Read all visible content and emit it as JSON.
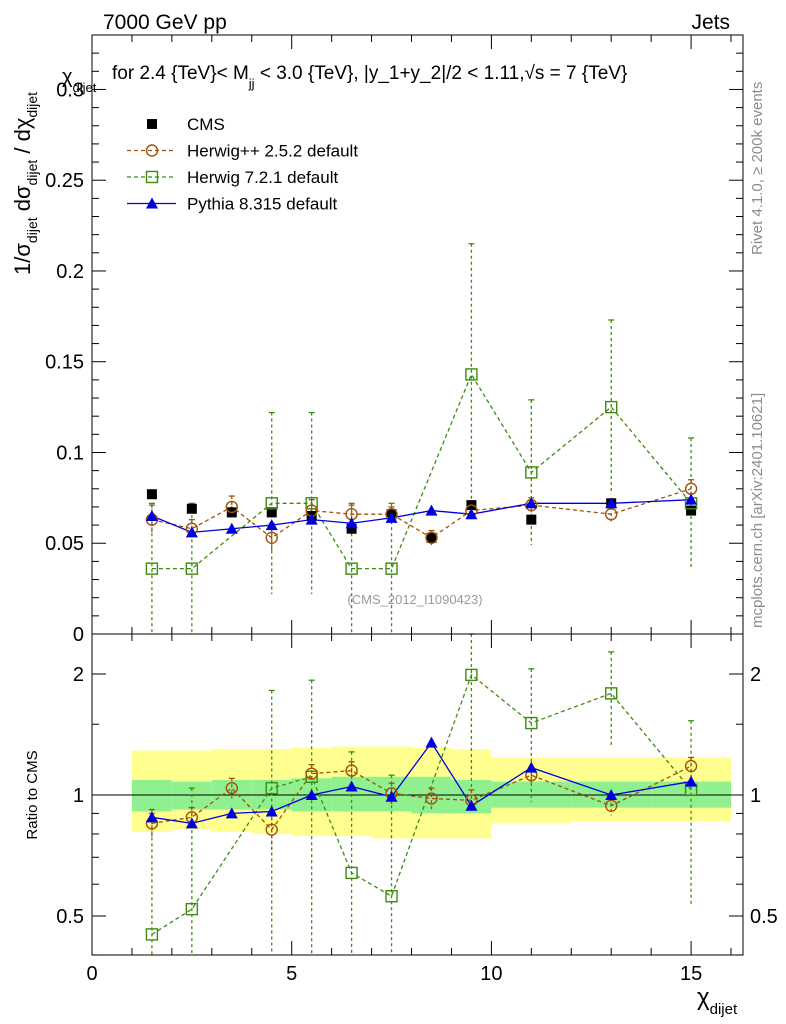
{
  "header": {
    "left": "7000 GeV pp",
    "right": "Jets"
  },
  "side_labels": {
    "rivet": "Rivet 4.1.0, ≥ 200k events",
    "mcplots": "mcplots.cern.ch [arXiv:2401.10621]"
  },
  "watermark": "(CMS_2012_I1090423)",
  "colors": {
    "cms": "#000000",
    "herwigpp": "#a0520a",
    "herwig7": "#3d8c0f",
    "pythia": "#0000dd",
    "band_inner": "#90f090",
    "band_outer": "#ffff90"
  },
  "chart_data": [
    {
      "type": "scatter",
      "panel": "main",
      "title": "χdijet for 2.4 {TeV}< Mjj < 3.0 {TeV}, |y_1+y_2|/2 < 1.11,√s = 7 {TeV}",
      "ylabel": "1/σdijet dσdijet / dχdijet",
      "xlabel": "χdijet",
      "xlim": [
        0,
        16.3
      ],
      "ylim": [
        0,
        0.33
      ],
      "yticks": [
        0,
        0.05,
        0.1,
        0.15,
        0.2,
        0.25,
        0.3
      ],
      "ytick_labels": [
        "0",
        "0.05",
        "0.1",
        "0.15",
        "0.2",
        "0.25",
        "0.3"
      ],
      "legend": [
        "CMS",
        "Herwig++ 2.5.2 default",
        "Herwig 7.2.1 default",
        "Pythia 8.315 default"
      ],
      "series": [
        {
          "name": "CMS",
          "x": [
            1.5,
            2.5,
            3.5,
            4.5,
            5.5,
            6.5,
            7.5,
            8.5,
            9.5,
            11,
            13,
            15
          ],
          "values": [
            0.077,
            0.069,
            0.067,
            0.067,
            0.065,
            0.058,
            0.066,
            0.053,
            0.071,
            0.063,
            0.072,
            0.068
          ]
        },
        {
          "name": "Herwig++ 2.5.2 default",
          "x": [
            1.5,
            2.5,
            3.5,
            4.5,
            5.5,
            6.5,
            7.5,
            8.5,
            9.5,
            11,
            13,
            15
          ],
          "values": [
            0.063,
            0.058,
            0.07,
            0.053,
            0.068,
            0.066,
            0.066,
            0.053,
            0.068,
            0.071,
            0.066,
            0.08
          ],
          "errors": [
            0.008,
            0.005,
            0.006,
            0.008,
            0.006,
            0.005,
            0.004,
            0.004,
            0.005,
            0.004,
            0.004,
            0.005
          ]
        },
        {
          "name": "Herwig 7.2.1 default",
          "x": [
            1.5,
            2.5,
            3.5,
            4.5,
            5.5,
            6.5,
            7.5,
            8.5,
            9.5,
            11,
            13,
            15
          ],
          "values": [
            0.036,
            0.036,
            null,
            0.072,
            0.072,
            0.036,
            0.036,
            null,
            0.143,
            0.089,
            0.125,
            0.072
          ],
          "errors": [
            0.036,
            0.036,
            null,
            0.05,
            0.05,
            0.036,
            0.036,
            null,
            0.072,
            0.04,
            0.048,
            0.036
          ]
        },
        {
          "name": "Pythia 8.315 default",
          "x": [
            1.5,
            2.5,
            3.5,
            4.5,
            5.5,
            6.5,
            7.5,
            8.5,
            9.5,
            11,
            13,
            15
          ],
          "values": [
            0.065,
            0.056,
            0.058,
            0.06,
            0.063,
            0.061,
            0.064,
            0.068,
            0.066,
            0.072,
            0.072,
            0.074
          ]
        }
      ]
    },
    {
      "type": "scatter",
      "panel": "ratio",
      "ylabel": "Ratio to CMS",
      "xlabel": "χdijet",
      "xlim": [
        0,
        16.3
      ],
      "ylim": [
        0.33,
        2.5
      ],
      "yticks": [
        0.5,
        1,
        2
      ],
      "ytick_labels": [
        "0.5",
        "1",
        "2"
      ],
      "xticks": [
        0,
        5,
        10,
        15
      ],
      "xtick_labels": [
        "0",
        "5",
        "10",
        "15"
      ],
      "bins": [
        [
          1,
          2
        ],
        [
          2,
          3
        ],
        [
          3,
          4
        ],
        [
          4,
          5
        ],
        [
          5,
          6
        ],
        [
          6,
          7
        ],
        [
          7,
          8
        ],
        [
          8,
          9
        ],
        [
          9,
          10
        ],
        [
          10,
          12
        ],
        [
          12,
          14
        ],
        [
          14,
          16
        ]
      ],
      "band_inner": [
        [
          0.91,
          1.09
        ],
        [
          0.92,
          1.08
        ],
        [
          0.92,
          1.09
        ],
        [
          0.92,
          1.09
        ],
        [
          0.91,
          1.1
        ],
        [
          0.91,
          1.11
        ],
        [
          0.91,
          1.11
        ],
        [
          0.9,
          1.11
        ],
        [
          0.9,
          1.09
        ],
        [
          0.93,
          1.08
        ],
        [
          0.93,
          1.08
        ],
        [
          0.93,
          1.08
        ]
      ],
      "band_outer": [
        [
          0.81,
          1.29
        ],
        [
          0.82,
          1.29
        ],
        [
          0.81,
          1.3
        ],
        [
          0.8,
          1.3
        ],
        [
          0.79,
          1.31
        ],
        [
          0.79,
          1.32
        ],
        [
          0.78,
          1.32
        ],
        [
          0.78,
          1.31
        ],
        [
          0.78,
          1.3
        ],
        [
          0.85,
          1.24
        ],
        [
          0.86,
          1.24
        ],
        [
          0.86,
          1.24
        ]
      ],
      "series": [
        {
          "name": "Herwig++ 2.5.2 default",
          "x": [
            1.5,
            2.5,
            3.5,
            4.5,
            5.5,
            6.5,
            7.5,
            8.5,
            9.5,
            11,
            13,
            15
          ],
          "values": [
            0.85,
            0.88,
            1.04,
            0.82,
            1.13,
            1.15,
            1.01,
            0.98,
            0.97,
            1.12,
            0.94,
            1.18
          ],
          "errors": [
            0.07,
            0.05,
            0.06,
            0.09,
            0.06,
            0.06,
            0.06,
            0.06,
            0.06,
            0.05,
            0.05,
            0.06
          ]
        },
        {
          "name": "Herwig 7.2.1 default",
          "x": [
            1.5,
            2.5,
            3.5,
            4.5,
            5.5,
            6.5,
            7.5,
            8.5,
            9.5,
            11,
            13,
            15
          ],
          "values": [
            0.45,
            0.52,
            null,
            1.04,
            1.11,
            0.64,
            0.56,
            null,
            1.99,
            1.51,
            1.79,
            1.03
          ],
          "errors": [
            0.45,
            0.52,
            null,
            0.78,
            0.82,
            0.64,
            0.56,
            null,
            1.0,
            0.55,
            0.48,
            0.5
          ]
        },
        {
          "name": "Pythia 8.315 default",
          "x": [
            1.5,
            2.5,
            3.5,
            4.5,
            5.5,
            6.5,
            7.5,
            8.5,
            9.5,
            11,
            13,
            15
          ],
          "values": [
            0.88,
            0.85,
            0.9,
            0.91,
            1.0,
            1.05,
            0.99,
            1.35,
            0.94,
            1.17,
            1.0,
            1.08
          ]
        }
      ]
    }
  ]
}
